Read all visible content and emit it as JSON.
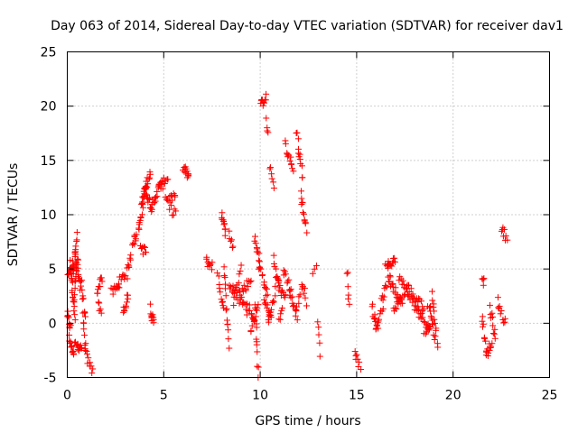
{
  "chart_data": {
    "type": "scatter",
    "title": "Day 063 of 2014, Sidereal Day-to-day VTEC variation (SDTVAR) for receiver dav1",
    "xlabel": "GPS time / hours",
    "ylabel": "SDTVAR / TECUs",
    "xlim": [
      0,
      25
    ],
    "ylim": [
      -5,
      25
    ],
    "xticks": [
      0,
      5,
      10,
      15,
      20,
      25
    ],
    "yticks": [
      -5,
      0,
      5,
      10,
      15,
      20,
      25
    ],
    "grid": true,
    "marker": "+",
    "color": "#ff0000",
    "segments": [
      {
        "x0": 0.0,
        "x1": 0.15,
        "y0": 0.8,
        "y1": -0.5,
        "n": 10
      },
      {
        "x0": 0.05,
        "x1": 0.3,
        "y0": 4.5,
        "y1": 5.5,
        "n": 12
      },
      {
        "x0": 0.15,
        "x1": 0.4,
        "y0": 5.5,
        "y1": 0.5,
        "n": 18
      },
      {
        "x0": 0.1,
        "x1": 0.35,
        "y0": -1.5,
        "y1": -3.2,
        "n": 12
      },
      {
        "x0": 0.3,
        "x1": 0.5,
        "y0": 4.0,
        "y1": 8.0,
        "n": 14
      },
      {
        "x0": 0.35,
        "x1": 0.55,
        "y0": 2.5,
        "y1": 6.0,
        "n": 10
      },
      {
        "x0": 0.4,
        "x1": 0.7,
        "y0": 6.5,
        "y1": 3.0,
        "n": 14
      },
      {
        "x0": 0.4,
        "x1": 0.75,
        "y0": -2.0,
        "y1": -2.2,
        "n": 12
      },
      {
        "x0": 0.7,
        "x1": 0.95,
        "y0": 4.0,
        "y1": 0.2,
        "n": 10
      },
      {
        "x0": 0.8,
        "x1": 0.95,
        "y0": 0.5,
        "y1": -2.5,
        "n": 8
      },
      {
        "x0": 0.95,
        "x1": 1.3,
        "y0": -2.8,
        "y1": -4.5,
        "n": 10
      },
      {
        "x0": 1.55,
        "x1": 1.8,
        "y0": 3.0,
        "y1": 4.2,
        "n": 10
      },
      {
        "x0": 1.6,
        "x1": 1.75,
        "y0": 2.0,
        "y1": 1.0,
        "n": 5
      },
      {
        "x0": 2.3,
        "x1": 2.7,
        "y0": 2.8,
        "y1": 3.5,
        "n": 10
      },
      {
        "x0": 2.6,
        "x1": 3.0,
        "y0": 3.5,
        "y1": 4.5,
        "n": 10
      },
      {
        "x0": 2.9,
        "x1": 3.15,
        "y0": 1.0,
        "y1": 2.5,
        "n": 10
      },
      {
        "x0": 3.1,
        "x1": 3.3,
        "y0": 4.5,
        "y1": 6.5,
        "n": 8
      },
      {
        "x0": 3.4,
        "x1": 3.6,
        "y0": 7.5,
        "y1": 8.0,
        "n": 8
      },
      {
        "x0": 3.7,
        "x1": 4.0,
        "y0": 8.5,
        "y1": 12.0,
        "n": 14
      },
      {
        "x0": 3.8,
        "x1": 4.1,
        "y0": 7.0,
        "y1": 6.5,
        "n": 8
      },
      {
        "x0": 3.85,
        "x1": 4.3,
        "y0": 11.0,
        "y1": 14.0,
        "n": 18
      },
      {
        "x0": 4.0,
        "x1": 4.4,
        "y0": 12.5,
        "y1": 10.5,
        "n": 16
      },
      {
        "x0": 4.3,
        "x1": 4.5,
        "y0": 1.5,
        "y1": -0.2,
        "n": 10
      },
      {
        "x0": 4.4,
        "x1": 4.9,
        "y0": 11.0,
        "y1": 13.0,
        "n": 16
      },
      {
        "x0": 4.8,
        "x1": 5.2,
        "y0": 12.5,
        "y1": 13.5,
        "n": 10
      },
      {
        "x0": 5.1,
        "x1": 5.6,
        "y0": 11.5,
        "y1": 11.5,
        "n": 12
      },
      {
        "x0": 5.3,
        "x1": 5.6,
        "y0": 10.5,
        "y1": 10.2,
        "n": 6
      },
      {
        "x0": 6.0,
        "x1": 6.3,
        "y0": 14.3,
        "y1": 13.5,
        "n": 12
      },
      {
        "x0": 7.2,
        "x1": 7.5,
        "y0": 5.7,
        "y1": 5.3,
        "n": 10
      },
      {
        "x0": 7.8,
        "x1": 8.1,
        "y0": 4.5,
        "y1": 1.0,
        "n": 10
      },
      {
        "x0": 8.0,
        "x1": 8.2,
        "y0": 10.3,
        "y1": 8.5,
        "n": 10
      },
      {
        "x0": 8.1,
        "x1": 8.4,
        "y0": 5.0,
        "y1": -2.0,
        "n": 14
      },
      {
        "x0": 8.4,
        "x1": 8.6,
        "y0": 8.3,
        "y1": 7.0,
        "n": 6
      },
      {
        "x0": 8.4,
        "x1": 9.0,
        "y0": 3.5,
        "y1": 2.0,
        "n": 14
      },
      {
        "x0": 8.6,
        "x1": 9.0,
        "y0": 2.0,
        "y1": 5.0,
        "n": 10
      },
      {
        "x0": 8.9,
        "x1": 9.3,
        "y0": 3.5,
        "y1": 1.0,
        "n": 10
      },
      {
        "x0": 9.1,
        "x1": 9.5,
        "y0": 3.0,
        "y1": 4.0,
        "n": 10
      },
      {
        "x0": 9.3,
        "x1": 9.7,
        "y0": 2.0,
        "y1": 0.0,
        "n": 10
      },
      {
        "x0": 9.5,
        "x1": 9.9,
        "y0": -0.5,
        "y1": 1.5,
        "n": 10
      },
      {
        "x0": 9.7,
        "x1": 10.0,
        "y0": 8.0,
        "y1": 5.5,
        "n": 10
      },
      {
        "x0": 9.75,
        "x1": 9.9,
        "y0": 2.0,
        "y1": -4.8,
        "n": 12
      },
      {
        "x0": 10.0,
        "x1": 10.3,
        "y0": 20.0,
        "y1": 21.0,
        "n": 10
      },
      {
        "x0": 10.3,
        "x1": 10.4,
        "y0": 18.5,
        "y1": 17.5,
        "n": 4
      },
      {
        "x0": 9.9,
        "x1": 10.4,
        "y0": 5.5,
        "y1": 2.5,
        "n": 14
      },
      {
        "x0": 10.2,
        "x1": 10.6,
        "y0": 2.0,
        "y1": 0.5,
        "n": 12
      },
      {
        "x0": 10.4,
        "x1": 10.8,
        "y0": 0.0,
        "y1": 3.0,
        "n": 10
      },
      {
        "x0": 10.5,
        "x1": 10.7,
        "y0": 14.5,
        "y1": 12.5,
        "n": 6
      },
      {
        "x0": 10.7,
        "x1": 11.0,
        "y0": 6.0,
        "y1": 3.0,
        "n": 10
      },
      {
        "x0": 10.9,
        "x1": 11.2,
        "y0": 4.0,
        "y1": 2.5,
        "n": 8
      },
      {
        "x0": 11.0,
        "x1": 11.3,
        "y0": 0.0,
        "y1": 3.0,
        "n": 8
      },
      {
        "x0": 11.3,
        "x1": 11.7,
        "y0": 16.5,
        "y1": 14.0,
        "n": 12
      },
      {
        "x0": 11.2,
        "x1": 11.6,
        "y0": 5.0,
        "y1": 3.0,
        "n": 10
      },
      {
        "x0": 11.5,
        "x1": 11.9,
        "y0": 3.0,
        "y1": 0.5,
        "n": 10
      },
      {
        "x0": 11.8,
        "x1": 12.2,
        "y0": 1.0,
        "y1": 3.5,
        "n": 8
      },
      {
        "x0": 11.9,
        "x1": 12.2,
        "y0": 17.5,
        "y1": 13.5,
        "n": 12
      },
      {
        "x0": 12.1,
        "x1": 12.4,
        "y0": 12.0,
        "y1": 8.5,
        "n": 12
      },
      {
        "x0": 12.15,
        "x1": 12.4,
        "y0": 4.0,
        "y1": 2.0,
        "n": 6
      },
      {
        "x0": 12.7,
        "x1": 12.9,
        "y0": 4.8,
        "y1": 4.9,
        "n": 3
      },
      {
        "x0": 13.0,
        "x1": 13.1,
        "y0": 0.2,
        "y1": -2.8,
        "n": 5
      },
      {
        "x0": 14.5,
        "x1": 14.6,
        "y0": 5.0,
        "y1": 1.5,
        "n": 6
      },
      {
        "x0": 14.9,
        "x1": 15.2,
        "y0": -2.5,
        "y1": -4.0,
        "n": 8
      },
      {
        "x0": 15.8,
        "x1": 16.1,
        "y0": 1.5,
        "y1": -0.5,
        "n": 10
      },
      {
        "x0": 16.0,
        "x1": 16.4,
        "y0": -0.5,
        "y1": 2.0,
        "n": 10
      },
      {
        "x0": 16.3,
        "x1": 16.7,
        "y0": 2.0,
        "y1": 4.5,
        "n": 10
      },
      {
        "x0": 16.5,
        "x1": 17.0,
        "y0": 5.0,
        "y1": 6.0,
        "n": 14
      },
      {
        "x0": 16.7,
        "x1": 17.3,
        "y0": 4.0,
        "y1": 2.0,
        "n": 16
      },
      {
        "x0": 16.9,
        "x1": 17.5,
        "y0": 1.5,
        "y1": 2.5,
        "n": 14
      },
      {
        "x0": 17.2,
        "x1": 17.8,
        "y0": 4.0,
        "y1": 3.0,
        "n": 14
      },
      {
        "x0": 17.6,
        "x1": 18.2,
        "y0": 3.0,
        "y1": 1.0,
        "n": 14
      },
      {
        "x0": 17.9,
        "x1": 18.5,
        "y0": 2.5,
        "y1": 1.5,
        "n": 12
      },
      {
        "x0": 18.2,
        "x1": 18.8,
        "y0": 1.0,
        "y1": -0.5,
        "n": 14
      },
      {
        "x0": 18.5,
        "x1": 19.0,
        "y0": -1.0,
        "y1": 0.5,
        "n": 10
      },
      {
        "x0": 18.7,
        "x1": 19.1,
        "y0": 2.0,
        "y1": -1.5,
        "n": 10
      },
      {
        "x0": 18.9,
        "x1": 19.2,
        "y0": 3.0,
        "y1": -2.0,
        "n": 10
      },
      {
        "x0": 21.5,
        "x1": 21.6,
        "y0": 4.2,
        "y1": 3.8,
        "n": 4
      },
      {
        "x0": 21.5,
        "x1": 21.7,
        "y0": 1.0,
        "y1": -2.5,
        "n": 8
      },
      {
        "x0": 21.7,
        "x1": 22.0,
        "y0": -3.0,
        "y1": -2.0,
        "n": 10
      },
      {
        "x0": 21.9,
        "x1": 22.2,
        "y0": 1.5,
        "y1": -1.5,
        "n": 10
      },
      {
        "x0": 22.3,
        "x1": 22.7,
        "y0": 2.0,
        "y1": 0.0,
        "n": 10
      },
      {
        "x0": 22.5,
        "x1": 22.8,
        "y0": 8.8,
        "y1": 7.8,
        "n": 8
      }
    ]
  }
}
